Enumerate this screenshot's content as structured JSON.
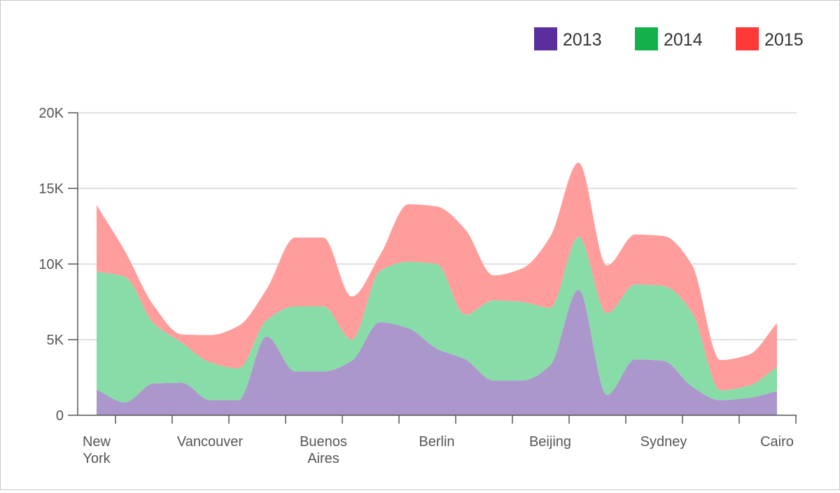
{
  "chart_data": {
    "type": "area",
    "stacked": true,
    "curve": "smooth",
    "categories": [
      "New York",
      "",
      "",
      "",
      "Vancouver",
      "",
      "",
      "",
      "Buenos Aires",
      "",
      "",
      "",
      "Berlin",
      "",
      "",
      "",
      "Beijing",
      "",
      "",
      "",
      "Sydney",
      "",
      "",
      "",
      "Cairo"
    ],
    "category_labels": [
      {
        "index": 0,
        "lines": [
          "New",
          "York"
        ]
      },
      {
        "index": 4,
        "lines": [
          "Vancouver"
        ]
      },
      {
        "index": 8,
        "lines": [
          "Buenos",
          "Aires"
        ]
      },
      {
        "index": 12,
        "lines": [
          "Berlin"
        ]
      },
      {
        "index": 16,
        "lines": [
          "Beijing"
        ]
      },
      {
        "index": 20,
        "lines": [
          "Sydney"
        ]
      },
      {
        "index": 24,
        "lines": [
          "Cairo"
        ]
      }
    ],
    "series": [
      {
        "name": "2013",
        "color": "#5b2e9e",
        "fill": "#ab97cc",
        "values": [
          1700,
          850,
          2100,
          2150,
          1000,
          1000,
          5200,
          2900,
          2900,
          3600,
          6150,
          5750,
          4400,
          3700,
          2300,
          2300,
          3300,
          8300,
          1350,
          3700,
          3600,
          1900,
          1000,
          1150,
          1600
        ]
      },
      {
        "name": "2014",
        "color": "#14b04c",
        "fill": "#88dca7",
        "values": [
          7800,
          8300,
          4000,
          2650,
          2500,
          2100,
          1100,
          4300,
          4300,
          1400,
          3400,
          4400,
          5600,
          2950,
          5300,
          5200,
          3800,
          3500,
          5400,
          4950,
          4950,
          4900,
          650,
          800,
          1600
        ]
      },
      {
        "name": "2015",
        "color": "#ff3838",
        "fill": "#ff9d9d",
        "values": [
          4400,
          1700,
          1200,
          550,
          1800,
          2800,
          2050,
          4550,
          4550,
          2850,
          1050,
          3800,
          3800,
          5650,
          1650,
          2200,
          4700,
          4900,
          3150,
          3300,
          3300,
          3150,
          2000,
          2050,
          2900
        ]
      }
    ],
    "yticks": [
      {
        "value": 0,
        "label": "0"
      },
      {
        "value": 5000,
        "label": "5K"
      },
      {
        "value": 10000,
        "label": "10K"
      },
      {
        "value": 15000,
        "label": "15K"
      },
      {
        "value": 20000,
        "label": "20K"
      }
    ],
    "ylim": [
      0,
      20000
    ],
    "grid": true,
    "legend_position": "top-right"
  }
}
